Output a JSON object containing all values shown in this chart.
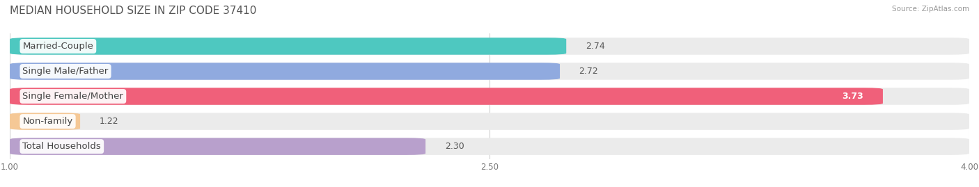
{
  "title": "MEDIAN HOUSEHOLD SIZE IN ZIP CODE 37410",
  "source": "Source: ZipAtlas.com",
  "categories": [
    "Married-Couple",
    "Single Male/Father",
    "Single Female/Mother",
    "Non-family",
    "Total Households"
  ],
  "values": [
    2.74,
    2.72,
    3.73,
    1.22,
    2.3
  ],
  "bar_colors": [
    "#4ec8c0",
    "#90aadf",
    "#f0607a",
    "#f5c896",
    "#b8a0cc"
  ],
  "xlim_start": 1.0,
  "xlim_end": 4.0,
  "xticks": [
    1.0,
    2.5,
    4.0
  ],
  "label_fontsize": 9.5,
  "value_fontsize": 9.0,
  "title_fontsize": 11,
  "background_color": "#ffffff",
  "bar_bg_color": "#ebebeb",
  "bar_height": 0.68,
  "bar_gap": 0.12
}
